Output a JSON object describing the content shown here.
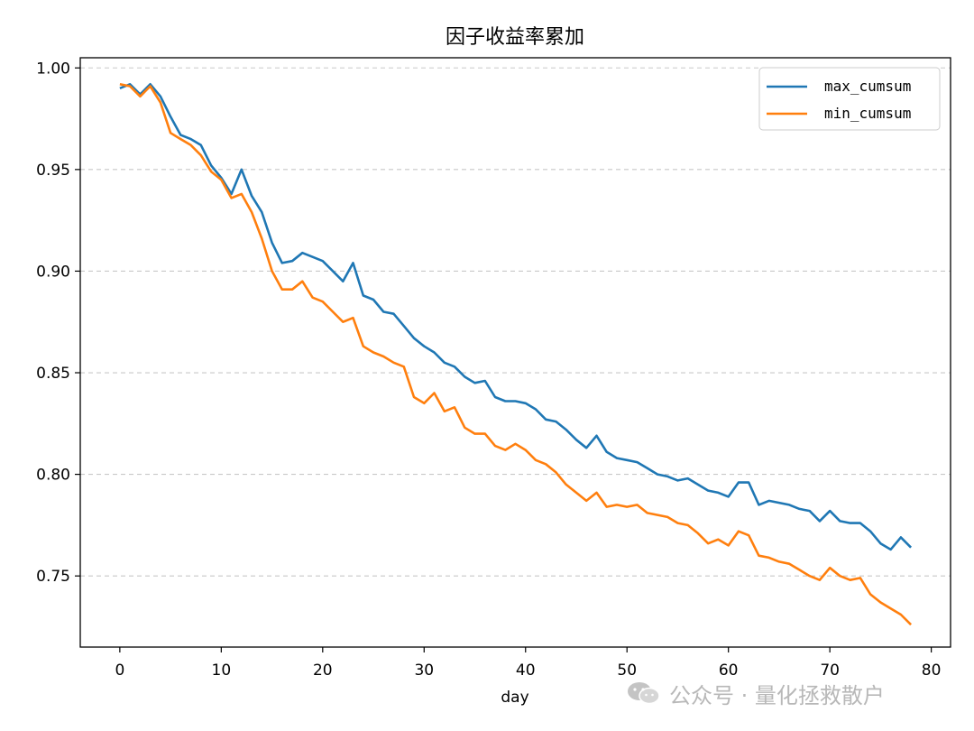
{
  "chart_data": {
    "type": "line",
    "title": "因子收益率累加",
    "xlabel": "day",
    "ylabel": "",
    "xlim": [
      -3.9,
      81.9
    ],
    "ylim": [
      0.715,
      1.005
    ],
    "xticks": [
      "0",
      "10",
      "20",
      "30",
      "40",
      "50",
      "60",
      "70",
      "80"
    ],
    "yticks": [
      "0.75",
      "0.80",
      "0.85",
      "0.90",
      "0.95",
      "1.00"
    ],
    "grid": "y-dashed",
    "legend_position": "top-right",
    "x": [
      0,
      1,
      2,
      3,
      4,
      5,
      6,
      7,
      8,
      9,
      10,
      11,
      12,
      13,
      14,
      15,
      16,
      17,
      18,
      19,
      20,
      21,
      22,
      23,
      24,
      25,
      26,
      27,
      28,
      29,
      30,
      31,
      32,
      33,
      34,
      35,
      36,
      37,
      38,
      39,
      40,
      41,
      42,
      43,
      44,
      45,
      46,
      47,
      48,
      49,
      50,
      51,
      52,
      53,
      54,
      55,
      56,
      57,
      58,
      59,
      60,
      61,
      62,
      63,
      64,
      65,
      66,
      67,
      68,
      69,
      70,
      71,
      72,
      73,
      74,
      75,
      76,
      77,
      78
    ],
    "series": [
      {
        "name": "max_cumsum",
        "color": "#1f77b4",
        "values": [
          0.99,
          0.992,
          0.987,
          0.992,
          0.986,
          0.976,
          0.967,
          0.965,
          0.962,
          0.952,
          0.946,
          0.938,
          0.95,
          0.937,
          0.929,
          0.914,
          0.904,
          0.905,
          0.909,
          0.907,
          0.905,
          0.9,
          0.895,
          0.904,
          0.888,
          0.886,
          0.88,
          0.879,
          0.873,
          0.867,
          0.863,
          0.86,
          0.855,
          0.853,
          0.848,
          0.845,
          0.846,
          0.838,
          0.836,
          0.836,
          0.835,
          0.832,
          0.827,
          0.826,
          0.822,
          0.817,
          0.813,
          0.819,
          0.811,
          0.808,
          0.807,
          0.806,
          0.803,
          0.8,
          0.799,
          0.797,
          0.798,
          0.795,
          0.792,
          0.791,
          0.789,
          0.796,
          0.796,
          0.785,
          0.787,
          0.786,
          0.785,
          0.783,
          0.782,
          0.777,
          0.782,
          0.777,
          0.776,
          0.776,
          0.772,
          0.766,
          0.763,
          0.769,
          0.764
        ]
      },
      {
        "name": "min_cumsum",
        "color": "#ff7f0e",
        "values": [
          0.992,
          0.991,
          0.986,
          0.991,
          0.983,
          0.968,
          0.965,
          0.962,
          0.957,
          0.949,
          0.945,
          0.936,
          0.938,
          0.929,
          0.916,
          0.9,
          0.891,
          0.891,
          0.895,
          0.887,
          0.885,
          0.88,
          0.875,
          0.877,
          0.863,
          0.86,
          0.858,
          0.855,
          0.853,
          0.838,
          0.835,
          0.84,
          0.831,
          0.833,
          0.823,
          0.82,
          0.82,
          0.814,
          0.812,
          0.815,
          0.812,
          0.807,
          0.805,
          0.801,
          0.795,
          0.791,
          0.787,
          0.791,
          0.784,
          0.785,
          0.784,
          0.785,
          0.781,
          0.78,
          0.779,
          0.776,
          0.775,
          0.771,
          0.766,
          0.768,
          0.765,
          0.772,
          0.77,
          0.76,
          0.759,
          0.757,
          0.756,
          0.753,
          0.75,
          0.748,
          0.754,
          0.75,
          0.748,
          0.749,
          0.741,
          0.737,
          0.734,
          0.731,
          0.726
        ]
      }
    ]
  },
  "watermark": {
    "icon": "wechat-icon",
    "text": "公众号 · 量化拯救散户"
  }
}
